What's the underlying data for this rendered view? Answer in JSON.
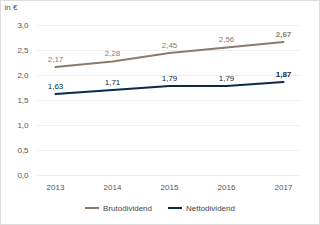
{
  "chart_data": {
    "type": "line",
    "y_label": "in €",
    "categories": [
      "2013",
      "2014",
      "2015",
      "2016",
      "2017"
    ],
    "series": [
      {
        "name": "Brutodividend",
        "color": "#8c7b6b",
        "values": [
          2.17,
          2.28,
          2.45,
          2.56,
          2.67
        ],
        "value_labels": [
          "2,17",
          "2,28",
          "2,45",
          "2,56",
          "2,67"
        ]
      },
      {
        "name": "Nettodividend",
        "color": "#0b2a4a",
        "values": [
          1.63,
          1.71,
          1.79,
          1.79,
          1.87
        ],
        "value_labels": [
          "1,63",
          "1,71",
          "1,79",
          "1,79",
          "1,87"
        ]
      }
    ],
    "ylim": [
      0,
      3
    ],
    "yticks": [
      {
        "value": 0,
        "label": "0,0"
      },
      {
        "value": 0.5,
        "label": "0,5"
      },
      {
        "value": 1,
        "label": "1,0"
      },
      {
        "value": 1.5,
        "label": "1,5"
      },
      {
        "value": 2,
        "label": "2,0"
      },
      {
        "value": 2.5,
        "label": "2,5"
      },
      {
        "value": 3,
        "label": "3,0"
      }
    ],
    "grid": true,
    "data_labels": true,
    "legend": "bottom"
  }
}
